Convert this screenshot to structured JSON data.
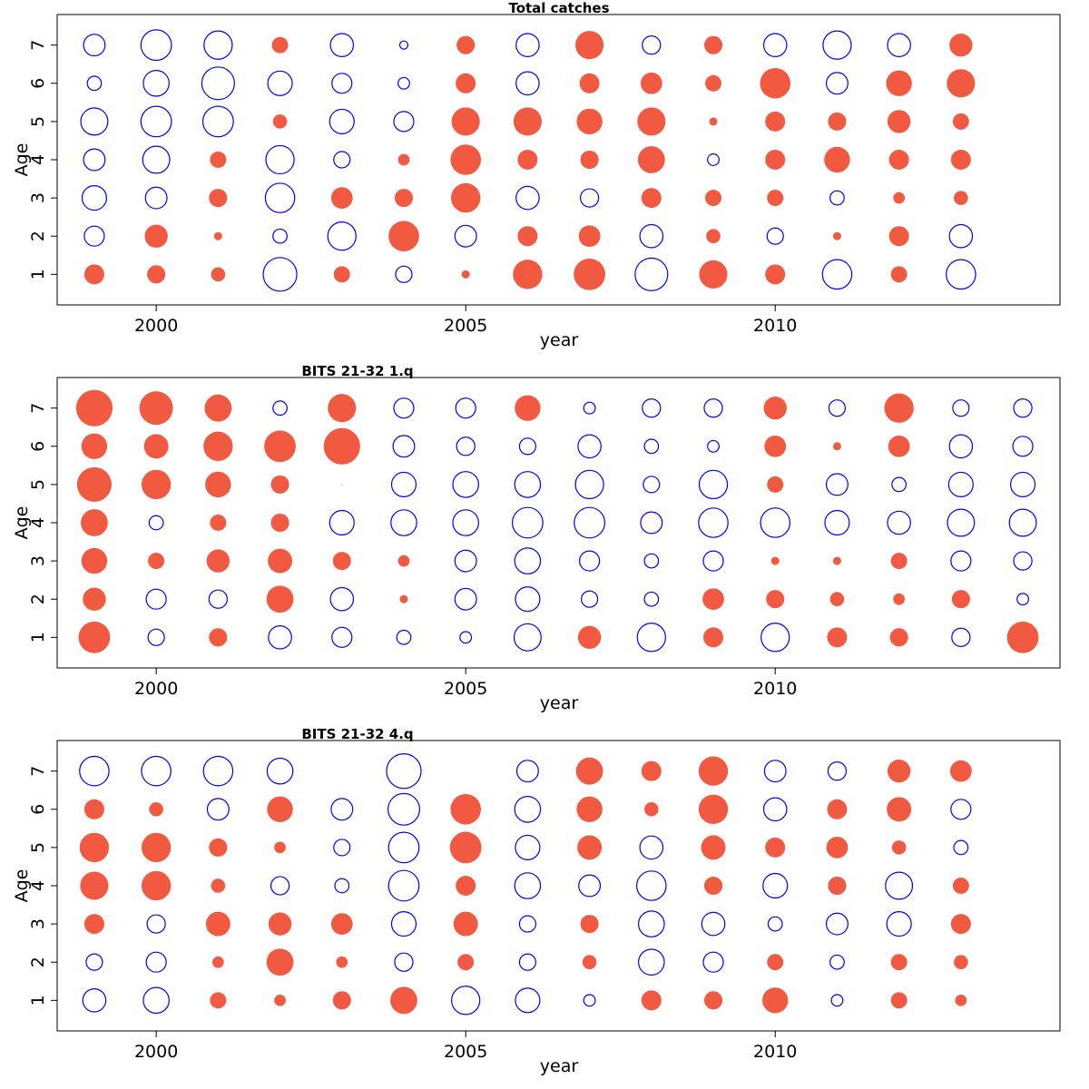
{
  "colors": {
    "positive": "#f15a40",
    "negative": "#0000ff"
  },
  "chart_data": [
    {
      "type": "scatter",
      "title": "Total catches",
      "xlabel": "year",
      "ylabel": "Age",
      "xlim": [
        1998.4,
        2014.6
      ],
      "ylim": [
        0.2,
        7.8
      ],
      "xticks": [
        2000,
        2005,
        2010
      ],
      "yticks": [
        1,
        2,
        3,
        4,
        5,
        6,
        7
      ],
      "grid": false,
      "marks": "circle area ~ |residual|; filled = positive, open = negative",
      "years": [
        1999,
        2000,
        2001,
        2002,
        2003,
        2004,
        2005,
        2006,
        2007,
        2008,
        2009,
        2010,
        2011,
        2012,
        2013
      ],
      "residuals": {
        "7": [
          -0.7,
          -1.4,
          -1.2,
          0.4,
          -0.8,
          -0.1,
          0.5,
          -0.8,
          1.2,
          -0.5,
          0.5,
          -0.8,
          -1.2,
          -0.8,
          0.8
        ],
        "6": [
          -0.3,
          -1.0,
          -1.6,
          -0.9,
          -0.6,
          -0.2,
          0.6,
          -0.8,
          0.6,
          0.7,
          0.4,
          1.4,
          -0.7,
          1.0,
          1.2
        ],
        "5": [
          -1.1,
          -1.4,
          -1.4,
          0.3,
          -0.9,
          -0.6,
          1.2,
          1.2,
          1.0,
          1.2,
          0.1,
          0.6,
          0.5,
          0.8,
          0.4
        ],
        "4": [
          -0.7,
          -1.1,
          0.4,
          -1.2,
          -0.4,
          0.2,
          1.4,
          0.6,
          0.5,
          1.1,
          -0.2,
          0.6,
          1.0,
          0.6,
          0.6
        ],
        "3": [
          -0.9,
          -0.7,
          0.5,
          -1.3,
          0.7,
          0.5,
          1.3,
          -0.8,
          -0.5,
          0.6,
          0.4,
          0.4,
          -0.3,
          0.2,
          0.3
        ],
        "2": [
          -0.6,
          0.8,
          0.1,
          -0.3,
          -1.2,
          1.4,
          -0.7,
          0.6,
          0.7,
          -0.8,
          0.3,
          -0.4,
          0.1,
          0.6,
          -0.8
        ],
        "1": [
          0.6,
          0.5,
          0.3,
          -1.7,
          0.4,
          -0.4,
          0.1,
          1.3,
          1.5,
          -1.6,
          1.2,
          0.6,
          -1.3,
          0.4,
          -1.3
        ]
      }
    },
    {
      "type": "scatter",
      "title": "BITS 21-32 1.q",
      "xlabel": "year",
      "ylabel": "Age",
      "xlim": [
        1998.4,
        2014.6
      ],
      "ylim": [
        0.2,
        7.8
      ],
      "xticks": [
        2000,
        2005,
        2010
      ],
      "yticks": [
        1,
        2,
        3,
        4,
        5,
        6,
        7
      ],
      "grid": false,
      "marks": "circle area ~ |residual|; filled = positive, open = negative",
      "years": [
        1999,
        2000,
        2001,
        2002,
        2003,
        2004,
        2005,
        2006,
        2007,
        2008,
        2009,
        2010,
        2011,
        2012,
        2013,
        2014
      ],
      "residuals": {
        "7": [
          2.0,
          1.7,
          1.1,
          -0.3,
          1.2,
          -0.6,
          -0.6,
          1.0,
          -0.2,
          -0.5,
          -0.5,
          0.8,
          -0.4,
          1.3,
          -0.4,
          -0.5
        ],
        "6": [
          1.0,
          0.9,
          1.3,
          1.5,
          2.0,
          -0.7,
          -0.5,
          -0.4,
          -0.8,
          -0.3,
          -0.2,
          0.7,
          0.1,
          0.7,
          -0.8,
          -0.6
        ],
        "5": [
          1.8,
          1.3,
          1.0,
          0.5,
          0.0,
          -0.9,
          -1.0,
          -1.0,
          -1.2,
          -0.4,
          -1.2,
          0.4,
          -0.7,
          -0.3,
          -0.9,
          -0.9
        ],
        "4": [
          1.1,
          -0.3,
          0.4,
          0.5,
          -0.9,
          -1.0,
          -1.0,
          -1.4,
          -1.4,
          -0.7,
          -1.3,
          -1.3,
          -0.9,
          -0.8,
          -1.1,
          -1.1
        ],
        "3": [
          1.0,
          0.4,
          0.8,
          0.9,
          0.5,
          0.2,
          -0.7,
          -1.0,
          -0.6,
          -0.3,
          -0.6,
          0.1,
          0.1,
          0.4,
          -0.6,
          -0.5
        ],
        "2": [
          0.8,
          -0.6,
          -0.5,
          1.1,
          -0.8,
          0.1,
          -0.7,
          -0.9,
          -0.4,
          -0.3,
          0.7,
          0.5,
          0.3,
          0.2,
          0.5,
          -0.2
        ],
        "1": [
          1.5,
          -0.4,
          0.5,
          -0.8,
          -0.6,
          -0.3,
          -0.2,
          -1.1,
          0.8,
          -1.2,
          0.6,
          -1.2,
          0.6,
          0.5,
          -0.5,
          1.5
        ]
      }
    },
    {
      "type": "scatter",
      "title": "BITS 21-32 4.q",
      "xlabel": "year",
      "ylabel": "Age",
      "xlim": [
        1998.4,
        2014.6
      ],
      "ylim": [
        0.2,
        7.8
      ],
      "xticks": [
        2000,
        2005,
        2010
      ],
      "yticks": [
        1,
        2,
        3,
        4,
        5,
        6,
        7
      ],
      "grid": false,
      "marks": "circle area ~ |residual|; filled = positive, open = negative",
      "years": [
        1999,
        2000,
        2001,
        2002,
        2003,
        2004,
        2005,
        2006,
        2007,
        2008,
        2009,
        2010,
        2011,
        2012,
        2013
      ],
      "residuals": {
        "7": [
          -1.3,
          -1.3,
          -1.3,
          -1.0,
          null,
          -1.8,
          null,
          -0.7,
          1.1,
          0.6,
          1.3,
          -0.7,
          -0.5,
          0.8,
          0.7
        ],
        "6": [
          0.6,
          0.3,
          -0.7,
          1.0,
          -0.7,
          -1.5,
          1.4,
          -1.0,
          1.0,
          0.3,
          1.3,
          -0.8,
          0.6,
          0.9,
          -0.6
        ],
        "5": [
          1.3,
          1.3,
          0.5,
          0.2,
          -0.4,
          -1.4,
          1.5,
          -0.9,
          0.9,
          -0.8,
          0.9,
          0.6,
          0.7,
          0.3,
          -0.3
        ],
        "4": [
          1.2,
          1.3,
          0.3,
          -0.5,
          -0.3,
          -1.4,
          0.6,
          -1.0,
          -0.7,
          -1.3,
          0.5,
          -0.9,
          0.5,
          -1.1,
          0.4
        ],
        "3": [
          0.6,
          -0.5,
          0.9,
          0.8,
          0.7,
          -0.9,
          0.9,
          -0.4,
          0.5,
          -1.0,
          -0.8,
          -0.3,
          -0.7,
          -0.9,
          0.6
        ],
        "2": [
          -0.4,
          -0.6,
          0.2,
          1.1,
          0.2,
          -0.5,
          0.4,
          -0.4,
          0.3,
          -1.0,
          -0.6,
          0.4,
          -0.3,
          0.4,
          0.3
        ],
        "1": [
          -0.8,
          -1.0,
          0.4,
          0.2,
          0.5,
          1.1,
          -1.2,
          -0.9,
          -0.2,
          0.6,
          0.5,
          1.0,
          -0.2,
          0.4,
          0.2
        ]
      }
    }
  ]
}
